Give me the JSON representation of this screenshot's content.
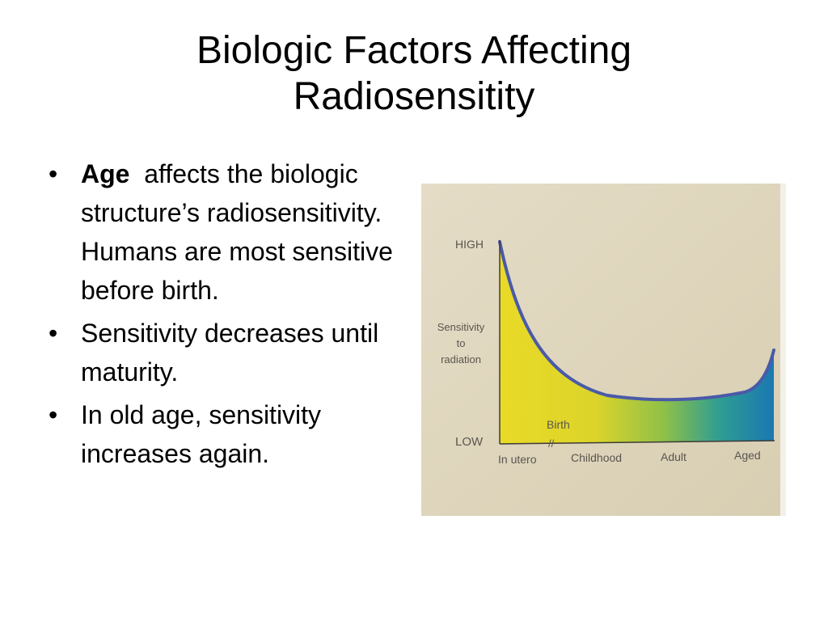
{
  "slide": {
    "title_line1": "Biologic Factors Affecting",
    "title_line2": "Radiosensitity",
    "bullets": [
      {
        "bold": "Age",
        "text": "affects the biologic structure’s radiosensitivity. Humans are most sensitive before birth."
      },
      {
        "text": "Sensitivity decreases until maturity."
      },
      {
        "text": "In old age, sensitivity increases again."
      }
    ]
  },
  "figure": {
    "y_high": "HIGH",
    "y_low": "LOW",
    "y_label_line1": "Sensitivity",
    "y_label_line2": "to",
    "y_label_line3": "radiation",
    "birth_label": "Birth",
    "birth_mark": "//",
    "x_labels": [
      "In utero",
      "Childhood",
      "Adult",
      "Aged"
    ],
    "colors": {
      "paper": "#e3dbc4",
      "curve": "#4a5aa8",
      "fill_start": "#e8d825",
      "fill_end": "#1e7fb5"
    }
  }
}
